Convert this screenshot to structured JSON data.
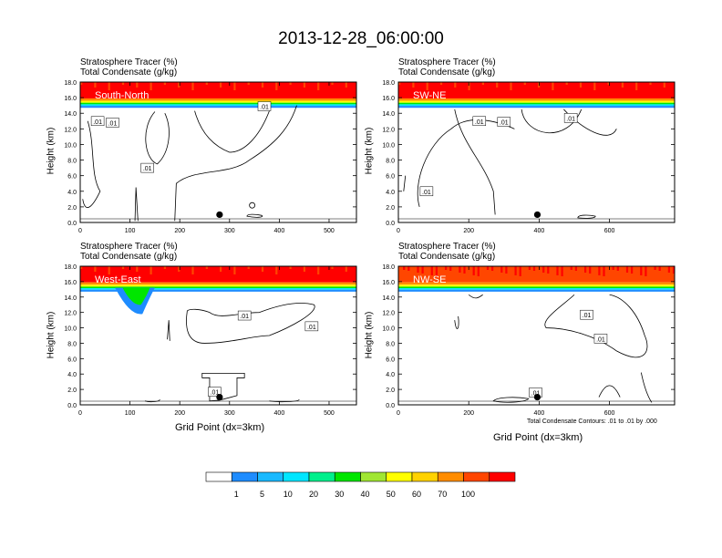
{
  "page": {
    "title": "2013-12-28_06:00:00",
    "x_axis_label": "Grid Point (dx=3km)",
    "y_axis_label": "Height (km)",
    "contour_note": "Total Condensate Contours: .01 to .01 by .000"
  },
  "colorbar": {
    "colors": [
      "#ffffff",
      "#1e8cff",
      "#19b9ff",
      "#00e6ff",
      "#00f08c",
      "#00e600",
      "#a0e632",
      "#ffff00",
      "#ffd200",
      "#ffb400",
      "#ff8c00",
      "#ff4600",
      "#ff0000"
    ],
    "labels": [
      "1",
      "5",
      "10",
      "20",
      "30",
      "40",
      "50",
      "60",
      "70",
      "100"
    ]
  },
  "chart_data": [
    {
      "type": "heatmap",
      "title_line1": "Stratosphere Tracer   (%)",
      "title_line2": "Total Condensate   (g/kg)",
      "panel_label": "South-North",
      "xlim": [
        0,
        555
      ],
      "xticks": [
        0,
        100,
        200,
        300,
        400,
        500
      ],
      "ylim": [
        0,
        18
      ],
      "yticks": [
        "0.0",
        "2.0",
        "4.0",
        "6.0",
        "8.0",
        "10.0",
        "12.0",
        "14.0",
        "16.0",
        "18.0"
      ],
      "contour_level": ".01",
      "marker": {
        "x": 280,
        "y": 1.0
      }
    },
    {
      "type": "heatmap",
      "title_line1": "Stratosphere Tracer   (%)",
      "title_line2": "Total Condensate   (g/kg)",
      "panel_label": "SW-NE",
      "xlim": [
        0,
        785
      ],
      "xticks": [
        0,
        200,
        400,
        600
      ],
      "ylim": [
        0,
        18
      ],
      "yticks": [
        "0.0",
        "2.0",
        "4.0",
        "6.0",
        "8.0",
        "10.0",
        "12.0",
        "14.0",
        "16.0",
        "18.0"
      ],
      "contour_level": ".01",
      "marker": {
        "x": 395,
        "y": 1.0
      }
    },
    {
      "type": "heatmap",
      "title_line1": "Stratosphere Tracer   (%)",
      "title_line2": "Total Condensate   (g/kg)",
      "panel_label": "West-East",
      "xlim": [
        0,
        555
      ],
      "xticks": [
        0,
        100,
        200,
        300,
        400,
        500
      ],
      "ylim": [
        0,
        18
      ],
      "yticks": [
        "0.0",
        "2.0",
        "4.0",
        "6.0",
        "8.0",
        "10.0",
        "12.0",
        "14.0",
        "16.0",
        "18.0"
      ],
      "contour_level": ".01",
      "marker": {
        "x": 280,
        "y": 1.0
      }
    },
    {
      "type": "heatmap",
      "title_line1": "Stratosphere Tracer   (%)",
      "title_line2": "Total Condensate   (g/kg)",
      "panel_label": "NW-SE",
      "xlim": [
        0,
        785
      ],
      "xticks": [
        0,
        200,
        400,
        600
      ],
      "ylim": [
        0,
        18
      ],
      "yticks": [
        "0.0",
        "2.0",
        "4.0",
        "6.0",
        "8.0",
        "10.0",
        "12.0",
        "14.0",
        "16.0",
        "18.0"
      ],
      "contour_level": ".01",
      "marker": {
        "x": 395,
        "y": 1.0
      }
    }
  ]
}
